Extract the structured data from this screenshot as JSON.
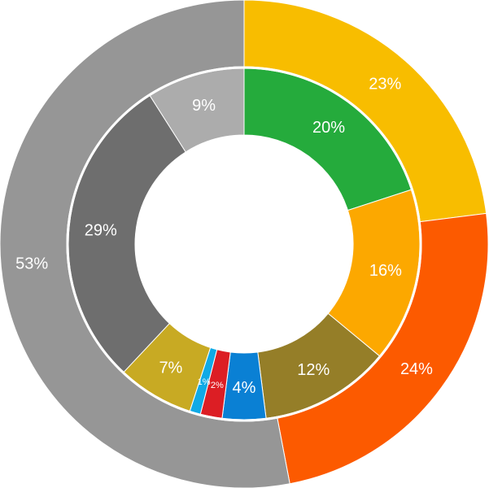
{
  "chart_data": {
    "type": "pie",
    "variant": "nested-donut",
    "title": "",
    "legend": "none",
    "start_angle_deg": 0,
    "direction": "clockwise",
    "outer_ring": [
      {
        "value": 23,
        "label": "23%",
        "color": "#f8bd00"
      },
      {
        "value": 24,
        "label": "24%",
        "color": "#fc5a00"
      },
      {
        "value": 53,
        "label": "53%",
        "color": "#969696"
      }
    ],
    "inner_ring": [
      {
        "value": 20,
        "label": "20%",
        "color": "#25ab3c"
      },
      {
        "value": 16,
        "label": "16%",
        "color": "#fca800"
      },
      {
        "value": 12,
        "label": "12%",
        "color": "#957e28"
      },
      {
        "value": 4,
        "label": "4%",
        "color": "#0a80d4"
      },
      {
        "value": 2,
        "label": "2%",
        "color": "#dc1e24"
      },
      {
        "value": 1,
        "label": "1%",
        "color": "#10aae6"
      },
      {
        "value": 7,
        "label": "7%",
        "color": "#c8aa23"
      },
      {
        "value": 29,
        "label": "29%",
        "color": "#6e6e6e"
      },
      {
        "value": 9,
        "label": "9%",
        "color": "#acacac"
      }
    ]
  }
}
